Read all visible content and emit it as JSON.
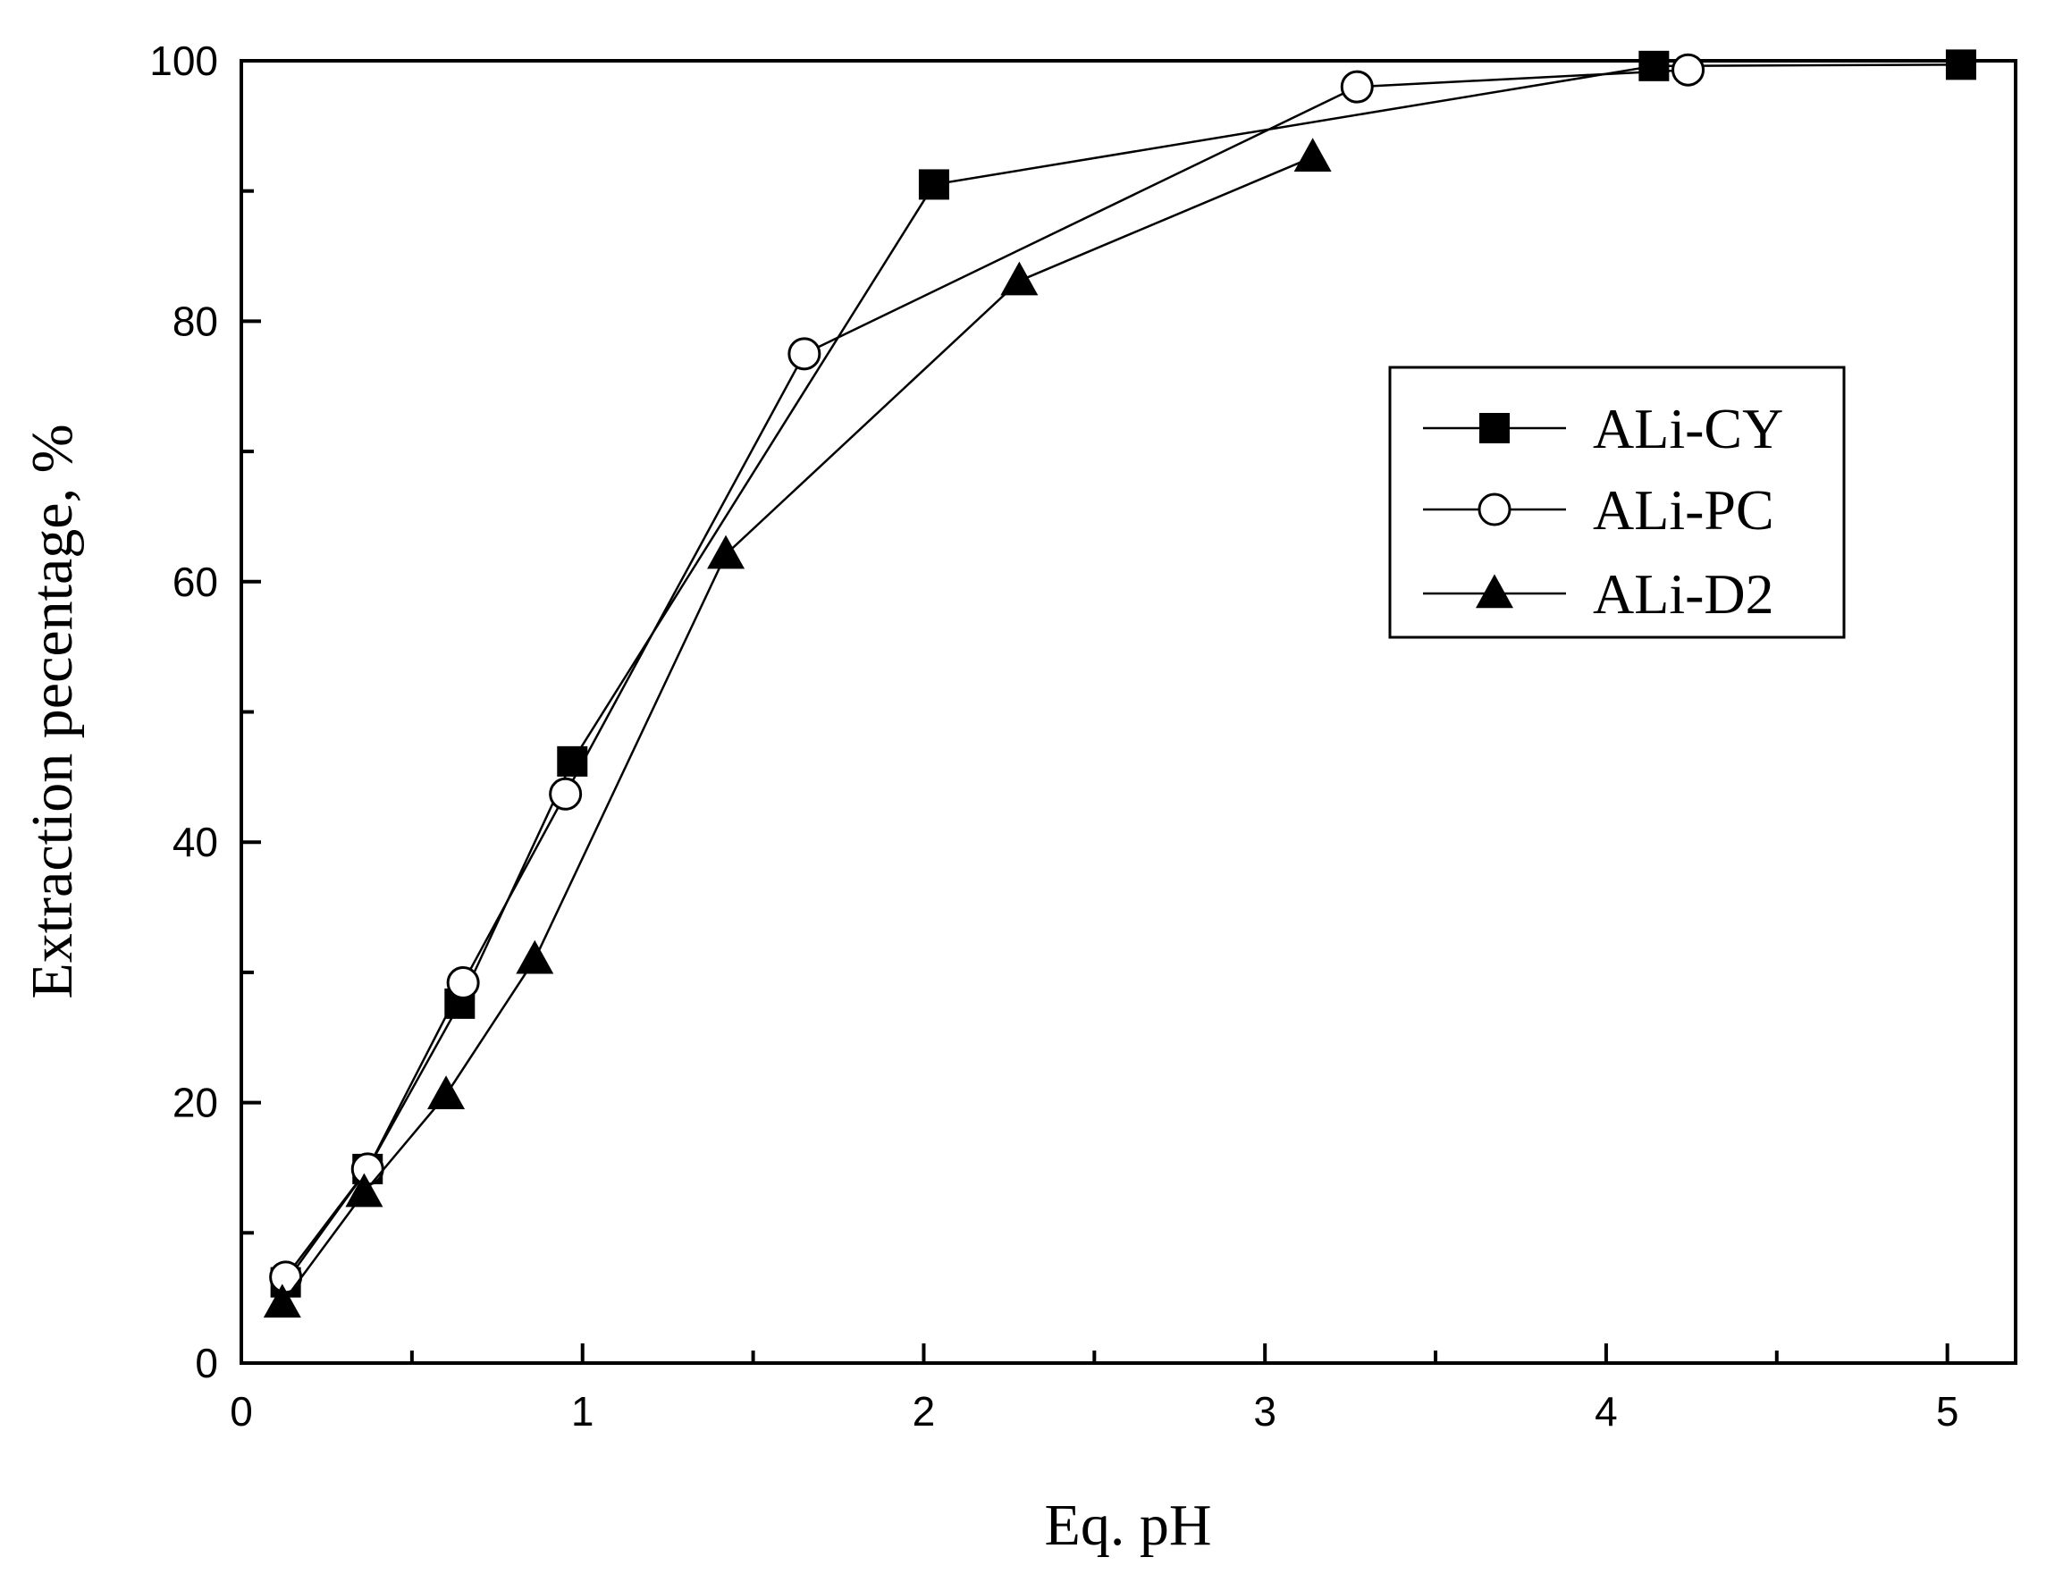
{
  "chart_data": {
    "type": "line",
    "title": "",
    "xlabel": "Eq. pH",
    "ylabel": "Extraction pecentage, %",
    "xlim": [
      0,
      5.2
    ],
    "ylim": [
      0,
      100
    ],
    "x_ticks": [
      "0",
      "1",
      "2",
      "3",
      "4",
      "5"
    ],
    "y_ticks": [
      "0",
      "20",
      "40",
      "60",
      "80",
      "100"
    ],
    "grid": false,
    "legend_position": "right",
    "series": [
      {
        "name": "ALi-CY",
        "marker": "filled-square",
        "x": [
          0.13,
          0.37,
          0.64,
          0.97,
          2.03,
          4.14,
          5.04
        ],
        "y": [
          6.2,
          14.9,
          27.6,
          46.2,
          90.5,
          99.6,
          99.7
        ]
      },
      {
        "name": "ALi-PC",
        "marker": "open-circle",
        "x": [
          0.13,
          0.37,
          0.65,
          0.95,
          1.65,
          3.27,
          4.24
        ],
        "y": [
          6.6,
          14.9,
          29.2,
          43.7,
          77.5,
          98.0,
          99.3
        ]
      },
      {
        "name": "ALi-D2",
        "marker": "filled-triangle",
        "x": [
          0.12,
          0.36,
          0.6,
          0.86,
          1.42,
          2.28,
          3.14
        ],
        "y": [
          4.6,
          13.1,
          20.6,
          31.0,
          62.1,
          83.1,
          92.6
        ]
      }
    ]
  }
}
